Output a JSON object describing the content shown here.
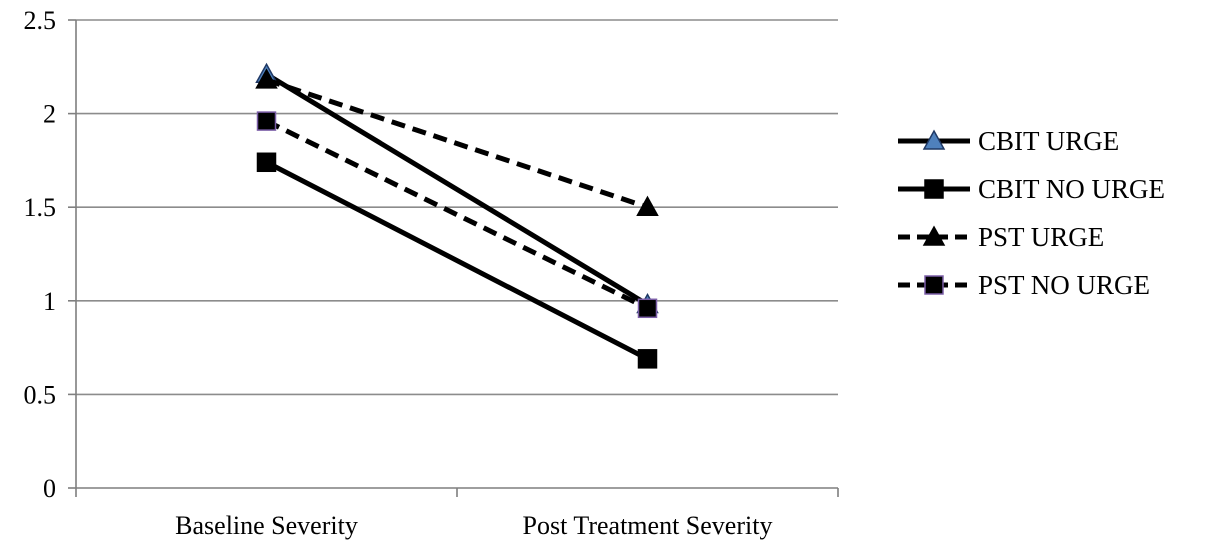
{
  "chart_data": {
    "type": "line",
    "title": "",
    "xlabel": "",
    "ylabel": "",
    "categories": [
      "Baseline Severity",
      "Post Treatment Severity"
    ],
    "ylim": [
      0,
      2.5
    ],
    "yticks": [
      "0",
      "0.5",
      "1",
      "1.5",
      "2",
      "2.5"
    ],
    "grid": true,
    "legend_position": "right",
    "series": [
      {
        "name": "CBIT URGE",
        "values": [
          2.21,
          0.98
        ],
        "line": "solid",
        "marker": "triangle",
        "marker_fill": "#4f81bd",
        "marker_stroke": "#1f3864",
        "color": "#000000"
      },
      {
        "name": "CBIT NO URGE",
        "values": [
          1.74,
          0.69
        ],
        "line": "solid",
        "marker": "square",
        "marker_fill": "#000000",
        "marker_stroke": "#000000",
        "color": "#000000"
      },
      {
        "name": "PST URGE",
        "values": [
          2.18,
          1.5
        ],
        "line": "dashed",
        "marker": "triangle",
        "marker_fill": "#000000",
        "marker_stroke": "#000000",
        "color": "#000000"
      },
      {
        "name": "PST NO URGE",
        "values": [
          1.96,
          0.96
        ],
        "line": "dashed",
        "marker": "square",
        "marker_fill": "#000000",
        "marker_stroke": "#7b5ea7",
        "color": "#000000"
      }
    ]
  }
}
